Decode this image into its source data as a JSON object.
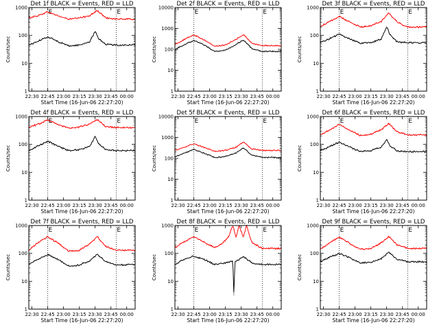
{
  "colors": {
    "events": "#000000",
    "lld": "#ff0000",
    "frame": "#000000",
    "background": "#ffffff"
  },
  "chart_data": [
    {
      "type": "line",
      "title": "Det 1f BLACK = Events, RED = LLD",
      "xlabel": "Start Time (16-Jun-06 22:27:20)",
      "ylabel": "Counts/sec",
      "xlim": [
        "22:27",
        "00:08"
      ],
      "ylim": [
        1,
        1000
      ],
      "yscale": "log",
      "x_ticks": [
        "22:30",
        "22:45",
        "23:00",
        "23:15",
        "23:30",
        "23:45",
        "00:00"
      ],
      "y_ticks": [
        "1",
        "10",
        "100",
        "1000"
      ],
      "markers": [
        "E",
        "E"
      ],
      "marker_times": [
        "22:45",
        "23:50"
      ],
      "series": [
        {
          "color": "lld",
          "x": [
            "22:27",
            "22:35",
            "22:45",
            "22:55",
            "23:05",
            "23:15",
            "23:25",
            "23:32",
            "23:40",
            "23:50",
            "00:08"
          ],
          "values": [
            430,
            500,
            700,
            500,
            380,
            420,
            520,
            780,
            430,
            390,
            380
          ]
        },
        {
          "color": "events",
          "x": [
            "22:27",
            "22:35",
            "22:45",
            "22:55",
            "23:05",
            "23:15",
            "23:25",
            "23:30",
            "23:33",
            "23:40",
            "23:50",
            "00:08"
          ],
          "values": [
            45,
            60,
            90,
            60,
            42,
            45,
            60,
            140,
            80,
            48,
            45,
            45
          ]
        }
      ]
    },
    {
      "type": "line",
      "title": "Det 2f BLACK = Events, RED = LLD",
      "xlabel": "Start Time (16-Jun-06 22:27:20)",
      "ylabel": "Counts/sec",
      "xlim": [
        "22:27",
        "00:08"
      ],
      "ylim": [
        1,
        10000
      ],
      "yscale": "log",
      "x_ticks": [
        "22:30",
        "22:45",
        "23:00",
        "23:15",
        "23:30",
        "23:45",
        "00:00"
      ],
      "y_ticks": [
        "1",
        "10",
        "100",
        "1000",
        "10000"
      ],
      "markers": [
        "E",
        "E"
      ],
      "marker_times": [
        "22:45",
        "23:50"
      ],
      "series": [
        {
          "color": "lld",
          "x": [
            "22:27",
            "22:35",
            "22:45",
            "22:55",
            "23:05",
            "23:15",
            "23:25",
            "23:32",
            "23:40",
            "23:50",
            "00:08"
          ],
          "values": [
            170,
            280,
            500,
            280,
            140,
            160,
            300,
            500,
            200,
            150,
            150
          ]
        },
        {
          "color": "events",
          "x": [
            "22:27",
            "22:35",
            "22:45",
            "22:55",
            "23:05",
            "23:15",
            "23:25",
            "23:32",
            "23:40",
            "23:50",
            "00:08"
          ],
          "values": [
            100,
            160,
            270,
            160,
            80,
            90,
            170,
            280,
            110,
            80,
            80
          ]
        }
      ]
    },
    {
      "type": "line",
      "title": "Det 3f BLACK = Events, RED = LLD",
      "xlabel": "Start Time (16-Jun-06 22:27:20)",
      "ylabel": "Counts/sec",
      "xlim": [
        "22:27",
        "00:08"
      ],
      "ylim": [
        1,
        1000
      ],
      "yscale": "log",
      "x_ticks": [
        "22:30",
        "22:45",
        "23:00",
        "23:15",
        "23:30",
        "23:45",
        "00:00"
      ],
      "y_ticks": [
        "1",
        "10",
        "100",
        "1000"
      ],
      "markers": [
        "E",
        "E"
      ],
      "marker_times": [
        "22:45",
        "23:50"
      ],
      "series": [
        {
          "color": "lld",
          "x": [
            "22:27",
            "22:35",
            "22:45",
            "22:55",
            "23:05",
            "23:15",
            "23:25",
            "23:32",
            "23:40",
            "23:50",
            "00:08"
          ],
          "values": [
            210,
            300,
            480,
            300,
            200,
            220,
            320,
            630,
            300,
            200,
            200
          ]
        },
        {
          "color": "events",
          "x": [
            "22:27",
            "22:35",
            "22:45",
            "22:55",
            "23:05",
            "23:15",
            "23:25",
            "23:30",
            "23:33",
            "23:40",
            "23:50",
            "00:08"
          ],
          "values": [
            55,
            75,
            110,
            75,
            52,
            55,
            75,
            210,
            110,
            58,
            55,
            55
          ]
        }
      ]
    },
    {
      "type": "line",
      "title": "Det 4f BLACK = Events, RED = LLD",
      "xlabel": "Start Time (16-Jun-06 22:27:20)",
      "ylabel": "Counts/sec",
      "xlim": [
        "22:27",
        "00:08"
      ],
      "ylim": [
        1,
        1000
      ],
      "yscale": "log",
      "x_ticks": [
        "22:30",
        "22:45",
        "23:00",
        "23:15",
        "23:30",
        "23:45",
        "00:00"
      ],
      "y_ticks": [
        "1",
        "10",
        "100",
        "1000"
      ],
      "markers": [
        "E",
        "E"
      ],
      "marker_times": [
        "22:45",
        "23:50"
      ],
      "series": [
        {
          "color": "lld",
          "x": [
            "22:27",
            "22:35",
            "22:45",
            "22:55",
            "23:05",
            "23:15",
            "23:25",
            "23:32",
            "23:40",
            "23:50",
            "00:08"
          ],
          "values": [
            420,
            520,
            750,
            520,
            380,
            420,
            540,
            780,
            440,
            400,
            400
          ]
        },
        {
          "color": "events",
          "x": [
            "22:27",
            "22:35",
            "22:45",
            "22:55",
            "23:05",
            "23:15",
            "23:25",
            "23:30",
            "23:33",
            "23:40",
            "23:50",
            "00:08"
          ],
          "values": [
            60,
            85,
            130,
            85,
            60,
            65,
            85,
            200,
            110,
            65,
            60,
            60
          ]
        }
      ]
    },
    {
      "type": "line",
      "title": "Det 5f BLACK = Events, RED = LLD",
      "xlabel": "Start Time (16-Jun-06 22:27:20)",
      "ylabel": "Counts/sec",
      "xlim": [
        "22:27",
        "00:08"
      ],
      "ylim": [
        1,
        10000
      ],
      "yscale": "log",
      "x_ticks": [
        "22:30",
        "22:45",
        "23:00",
        "23:15",
        "23:30",
        "23:45",
        "00:00"
      ],
      "y_ticks": [
        "1",
        "10",
        "100",
        "1000",
        "10000"
      ],
      "markers": [
        "E",
        "E"
      ],
      "marker_times": [
        "22:45",
        "23:50"
      ],
      "series": [
        {
          "color": "lld",
          "x": [
            "22:27",
            "22:35",
            "22:45",
            "22:55",
            "23:05",
            "23:15",
            "23:25",
            "23:32",
            "23:40",
            "23:50",
            "00:08"
          ],
          "values": [
            240,
            330,
            500,
            330,
            210,
            240,
            340,
            600,
            280,
            240,
            240
          ]
        },
        {
          "color": "events",
          "x": [
            "22:27",
            "22:35",
            "22:45",
            "22:55",
            "23:05",
            "23:15",
            "23:25",
            "23:32",
            "23:40",
            "23:50",
            "00:08"
          ],
          "values": [
            120,
            170,
            270,
            170,
            110,
            120,
            180,
            320,
            140,
            110,
            110
          ]
        }
      ]
    },
    {
      "type": "line",
      "title": "Det 6f BLACK = Events, RED = LLD",
      "xlabel": "Start Time (16-Jun-06 22:27:20)",
      "ylabel": "Counts/sec",
      "xlim": [
        "22:27",
        "00:08"
      ],
      "ylim": [
        1,
        1000
      ],
      "yscale": "log",
      "x_ticks": [
        "22:30",
        "22:45",
        "23:00",
        "23:15",
        "23:30",
        "23:45",
        "00:00"
      ],
      "y_ticks": [
        "1",
        "10",
        "100",
        "1000"
      ],
      "markers": [
        "E",
        "E"
      ],
      "marker_times": [
        "22:45",
        "23:50"
      ],
      "series": [
        {
          "color": "lld",
          "x": [
            "22:27",
            "22:35",
            "22:45",
            "22:55",
            "23:05",
            "23:15",
            "23:25",
            "23:32",
            "23:40",
            "23:50",
            "00:08"
          ],
          "values": [
            220,
            320,
            520,
            320,
            210,
            230,
            340,
            560,
            280,
            220,
            220
          ]
        },
        {
          "color": "events",
          "x": [
            "22:27",
            "22:35",
            "22:45",
            "22:55",
            "23:05",
            "23:15",
            "23:25",
            "23:30",
            "23:33",
            "23:40",
            "23:50",
            "00:08"
          ],
          "values": [
            60,
            80,
            120,
            80,
            55,
            60,
            80,
            150,
            90,
            58,
            55,
            55
          ]
        }
      ]
    },
    {
      "type": "line",
      "title": "Det 7f BLACK = Events, RED = LLD",
      "xlabel": "Start Time (16-Jun-06 22:27:20)",
      "ylabel": "Counts/sec",
      "xlim": [
        "22:27",
        "00:08"
      ],
      "ylim": [
        1,
        1000
      ],
      "yscale": "log",
      "x_ticks": [
        "22:30",
        "22:45",
        "23:00",
        "23:15",
        "23:30",
        "23:45",
        "00:00"
      ],
      "y_ticks": [
        "1",
        "10",
        "100",
        "1000"
      ],
      "markers": [
        "E",
        "E"
      ],
      "marker_times": [
        "22:45",
        "23:50"
      ],
      "series": [
        {
          "color": "lld",
          "x": [
            "22:27",
            "22:35",
            "22:45",
            "22:55",
            "23:05",
            "23:15",
            "23:25",
            "23:32",
            "23:40",
            "23:50",
            "00:08"
          ],
          "values": [
            130,
            230,
            400,
            230,
            120,
            130,
            220,
            400,
            180,
            130,
            130
          ]
        },
        {
          "color": "events",
          "x": [
            "22:27",
            "22:35",
            "22:45",
            "22:55",
            "23:05",
            "23:15",
            "23:25",
            "23:32",
            "23:40",
            "23:50",
            "00:08"
          ],
          "values": [
            40,
            60,
            90,
            60,
            35,
            38,
            55,
            95,
            50,
            38,
            40
          ]
        }
      ]
    },
    {
      "type": "line",
      "title": "Det 8f BLACK = Events, RED = LLD",
      "xlabel": "Start Time (16-Jun-06 22:27:20)",
      "ylabel": "Counts/sec",
      "xlim": [
        "22:27",
        "00:08"
      ],
      "ylim": [
        1,
        1000
      ],
      "yscale": "log",
      "x_ticks": [
        "22:30",
        "22:45",
        "23:00",
        "23:15",
        "23:30",
        "23:45",
        "00:00"
      ],
      "y_ticks": [
        "1",
        "10",
        "100",
        "1000"
      ],
      "markers": [
        "E",
        "E"
      ],
      "marker_times": [
        "22:45",
        "23:50"
      ],
      "series": [
        {
          "color": "lld",
          "x": [
            "22:27",
            "22:35",
            "22:45",
            "22:55",
            "23:05",
            "23:12",
            "23:18",
            "23:22",
            "23:25",
            "23:28",
            "23:32",
            "23:35",
            "23:40",
            "23:50",
            "00:08"
          ],
          "values": [
            160,
            250,
            400,
            250,
            160,
            220,
            400,
            1000,
            380,
            1000,
            380,
            1000,
            250,
            150,
            150
          ]
        },
        {
          "color": "events",
          "x": [
            "22:27",
            "22:35",
            "22:45",
            "22:55",
            "23:05",
            "23:15",
            "23:22",
            "23:23",
            "23:24",
            "23:28",
            "23:32",
            "23:40",
            "23:50",
            "00:08"
          ],
          "values": [
            40,
            60,
            80,
            60,
            40,
            45,
            55,
            3,
            50,
            60,
            80,
            45,
            40,
            40
          ]
        }
      ]
    },
    {
      "type": "line",
      "title": "Det 9f BLACK = Events, RED = LLD",
      "xlabel": "Start Time (16-Jun-06 22:27:20)",
      "ylabel": "Counts/sec",
      "xlim": [
        "22:27",
        "00:08"
      ],
      "ylim": [
        1,
        1000
      ],
      "yscale": "log",
      "x_ticks": [
        "22:30",
        "22:45",
        "23:00",
        "23:15",
        "23:30",
        "23:45",
        "00:00"
      ],
      "y_ticks": [
        "1",
        "10",
        "100",
        "1000"
      ],
      "markers": [
        "E",
        "E"
      ],
      "marker_times": [
        "22:45",
        "23:50"
      ],
      "series": [
        {
          "color": "lld",
          "x": [
            "22:27",
            "22:35",
            "22:45",
            "22:55",
            "23:05",
            "23:15",
            "23:25",
            "23:32",
            "23:40",
            "23:50",
            "00:08"
          ],
          "values": [
            140,
            230,
            380,
            230,
            140,
            150,
            240,
            400,
            200,
            150,
            150
          ]
        },
        {
          "color": "events",
          "x": [
            "22:27",
            "22:35",
            "22:45",
            "22:55",
            "23:05",
            "23:15",
            "23:25",
            "23:32",
            "23:40",
            "23:50",
            "00:08"
          ],
          "values": [
            50,
            70,
            100,
            70,
            45,
            48,
            65,
            110,
            60,
            50,
            50
          ]
        }
      ]
    }
  ]
}
